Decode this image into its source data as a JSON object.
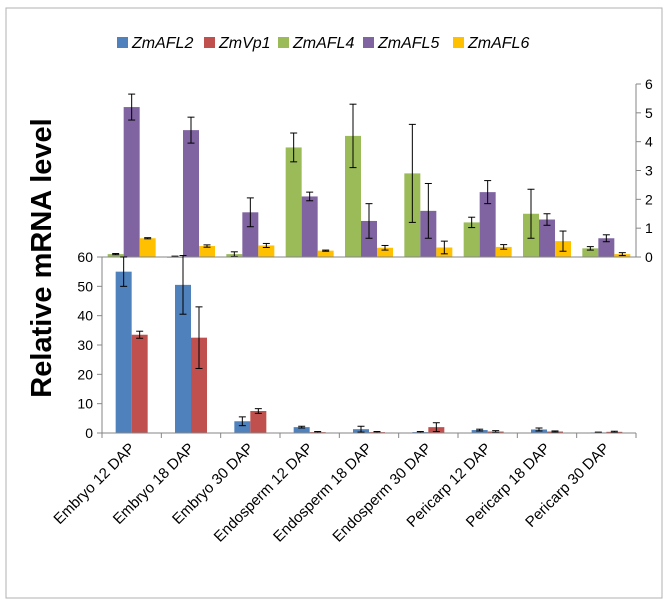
{
  "chart_data": {
    "type": "bar",
    "ylabel": "Relative mRNA level",
    "categories": [
      "Embryo 12 DAP",
      "Embryo 18 DAP",
      "Embryo 30 DAP",
      "Endosperm 12 DAP",
      "Endosperm 18 DAP",
      "Endosperm 30 DAP",
      "Pericarp 12 DAP",
      "Pericarp 18 DAP",
      "Pericarp 30 DAP"
    ],
    "legend": {
      "placement": "top"
    },
    "panels": [
      {
        "axis_side": "right",
        "ylim": [
          0,
          6
        ],
        "yticks": [
          "0",
          "1",
          "2",
          "3",
          "4",
          "5",
          "6"
        ],
        "series": [
          {
            "name": "ZmAFL4",
            "color": "#9BBB59",
            "values": [
              0.1,
              0.0,
              0.1,
              3.8,
              4.2,
              2.9,
              1.2,
              1.5,
              0.3
            ],
            "errors": [
              0.02,
              0.03,
              0.08,
              0.5,
              1.1,
              1.7,
              0.18,
              0.85,
              0.06
            ]
          },
          {
            "name": "ZmAFL5",
            "color": "#8064A2",
            "values": [
              5.2,
              4.4,
              1.55,
              2.1,
              1.25,
              1.6,
              2.25,
              1.3,
              0.65
            ],
            "errors": [
              0.45,
              0.45,
              0.5,
              0.15,
              0.6,
              0.95,
              0.4,
              0.2,
              0.12
            ]
          },
          {
            "name": "ZmAFL6",
            "color": "#FFC000",
            "values": [
              0.65,
              0.38,
              0.4,
              0.22,
              0.32,
              0.33,
              0.35,
              0.55,
              0.1
            ],
            "errors": [
              0.02,
              0.04,
              0.07,
              0.02,
              0.08,
              0.22,
              0.08,
              0.35,
              0.05
            ]
          }
        ]
      },
      {
        "axis_side": "left",
        "ylim": [
          0,
          60
        ],
        "yticks": [
          "0",
          "10",
          "20",
          "30",
          "40",
          "50",
          "60"
        ],
        "series": [
          {
            "name": "ZmAFL2",
            "color": "#4F81BD",
            "values": [
              55,
              50.5,
              4,
              2,
              1.3,
              0.3,
              1,
              1.2,
              0.2
            ],
            "errors": [
              5,
              10,
              1.5,
              0.3,
              1,
              0.2,
              0.3,
              0.5,
              0.1
            ]
          },
          {
            "name": "ZmVp1",
            "color": "#C0504D",
            "values": [
              33.5,
              32.5,
              7.5,
              0.3,
              0.3,
              2,
              0.5,
              0.5,
              0.4
            ],
            "errors": [
              1.2,
              10.5,
              0.8,
              0.2,
              0.2,
              1.5,
              0.3,
              0.2,
              0.2
            ]
          }
        ]
      }
    ]
  }
}
